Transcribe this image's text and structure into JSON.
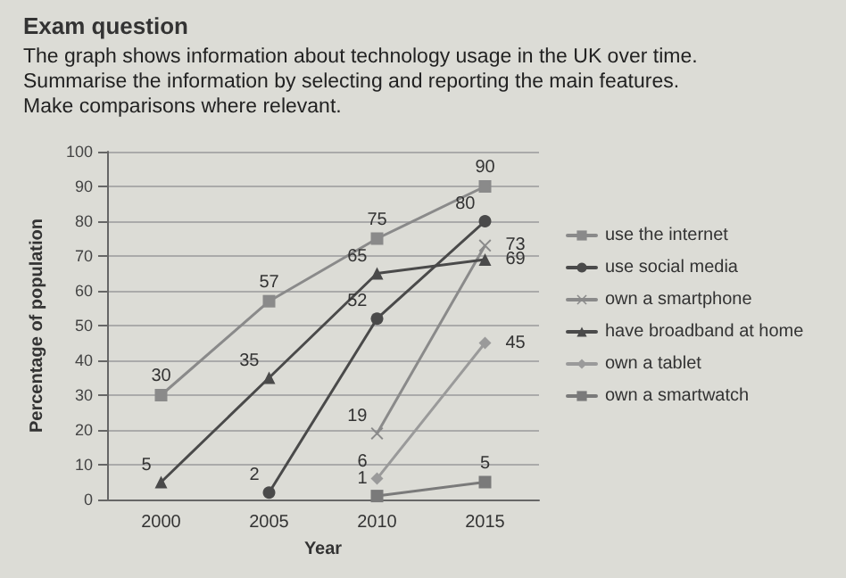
{
  "chart_data": {
    "type": "line",
    "title": "Exam question",
    "subtitle": "The graph shows information about technology usage in the UK over time.\nSummarise the information by selecting and reporting the main features.\nMake comparisons where relevant.",
    "xlabel": "Year",
    "ylabel": "Percentage of population",
    "categories": [
      "2000",
      "2005",
      "2010",
      "2015"
    ],
    "series": [
      {
        "name": "use the internet",
        "color": "#8a8a8a",
        "marker": "square",
        "values": [
          30,
          57,
          75,
          90
        ]
      },
      {
        "name": "use social media",
        "color": "#4a4a4a",
        "marker": "circle",
        "values": [
          null,
          2,
          52,
          80
        ]
      },
      {
        "name": "own a smartphone",
        "color": "#8a8a8a",
        "marker": "cross",
        "values": [
          null,
          null,
          19,
          73
        ]
      },
      {
        "name": "have broadband at home",
        "color": "#4a4a4a",
        "marker": "triangle",
        "values": [
          5,
          35,
          65,
          69
        ]
      },
      {
        "name": "own a tablet",
        "color": "#9a9a9a",
        "marker": "diamond",
        "values": [
          null,
          null,
          6,
          45
        ]
      },
      {
        "name": "own a smartwatch",
        "color": "#7a7a7a",
        "marker": "square",
        "values": [
          null,
          null,
          1,
          5
        ]
      }
    ],
    "ylim": [
      0,
      100
    ],
    "yticks": [
      0,
      10,
      20,
      30,
      40,
      50,
      60,
      70,
      80,
      90,
      100
    ],
    "grid": "y",
    "legend": "right",
    "data_labels": true
  }
}
